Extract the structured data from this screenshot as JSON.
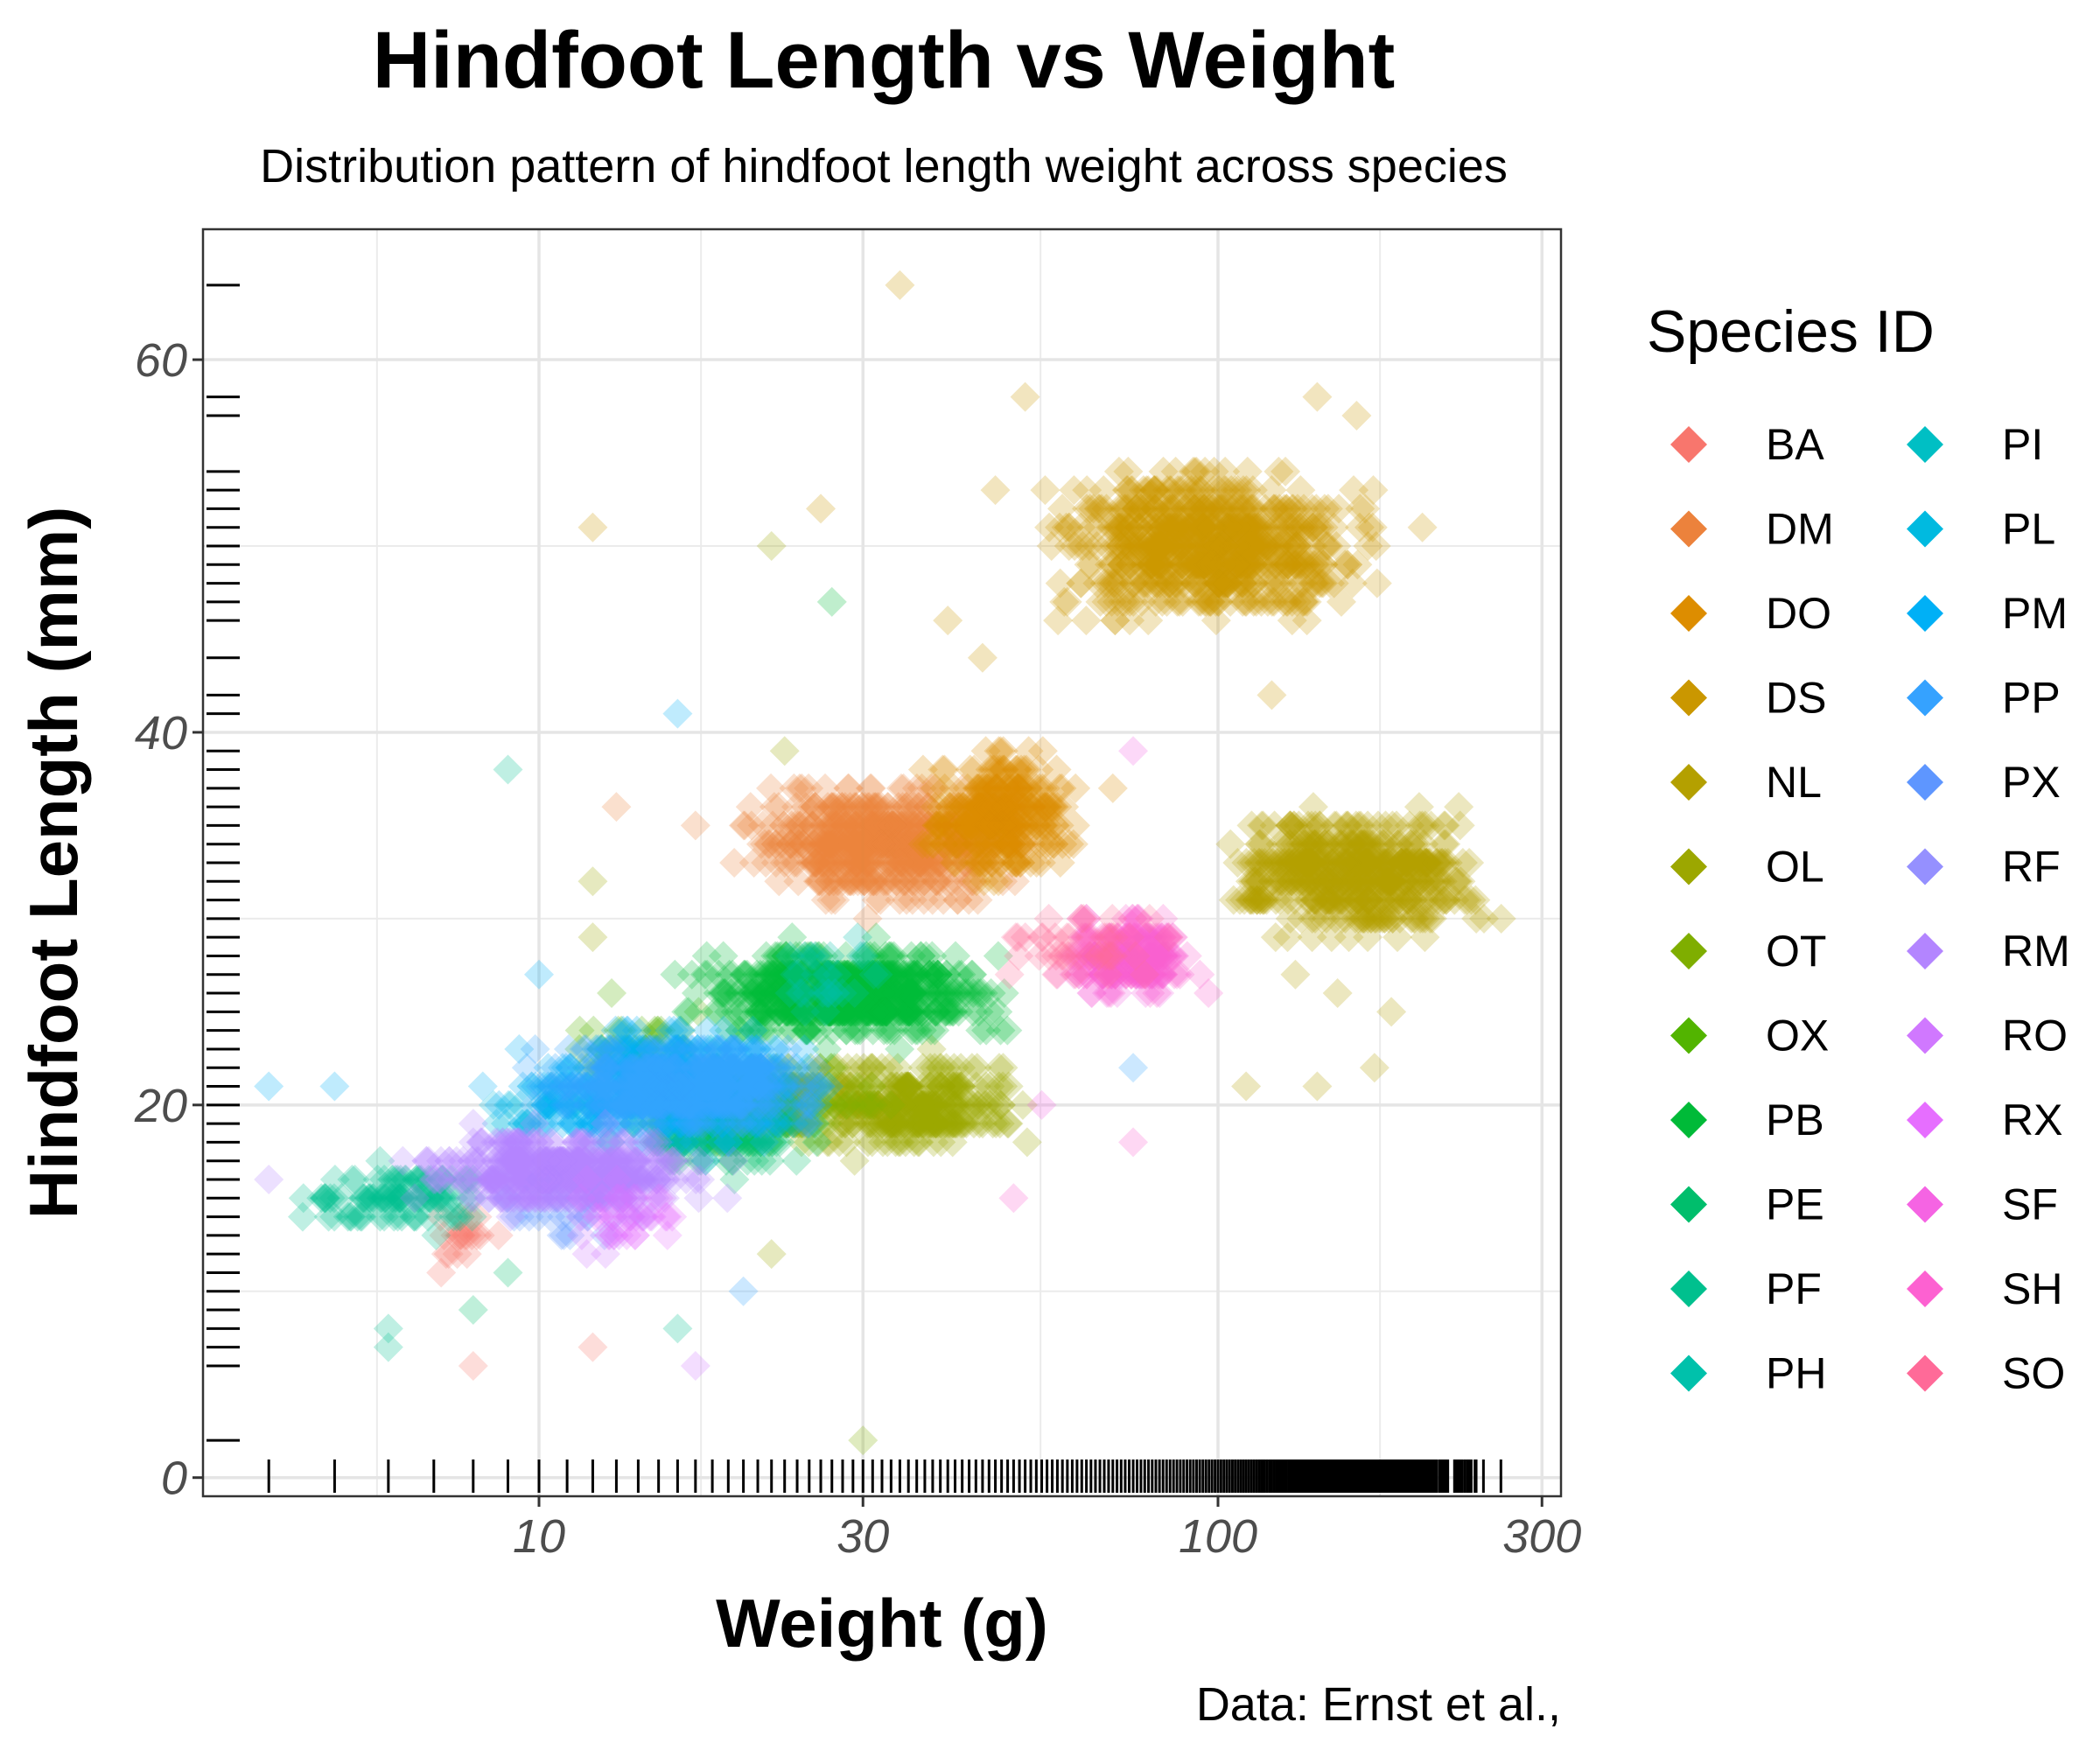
{
  "chart_data": {
    "type": "scatter",
    "title": "Hindfoot Length vs Weight",
    "subtitle": "Distribution pattern of hindfoot length weight across species",
    "xlabel": "Weight (g)",
    "ylabel": "Hindfoot Length (mm)",
    "caption": "Data: Ernst et al.,",
    "x_scale": "log10",
    "x_ticks": [
      10,
      30,
      100,
      300
    ],
    "x_tick_labels": [
      "10",
      "30",
      "100",
      "300"
    ],
    "xlim": [
      3.2,
      320
    ],
    "y_ticks": [
      0,
      20,
      40,
      60
    ],
    "y_tick_labels": [
      "0",
      "20",
      "40",
      "60"
    ],
    "ylim": [
      -1,
      67
    ],
    "grid": true,
    "rug": true,
    "marker": "diamond",
    "alpha": 0.25,
    "legend": {
      "title": "Species ID",
      "placement": "right",
      "columns": 2
    },
    "series": [
      {
        "name": "BA",
        "color": "#F8766D",
        "clusters": [
          {
            "x": [
              6,
              10
            ],
            "y": [
              10,
              15
            ],
            "n": 20
          }
        ],
        "points": [
          [
            8,
            6
          ],
          [
            12,
            7
          ]
        ]
      },
      {
        "name": "DM",
        "color": "#EC823C",
        "clusters": [
          {
            "x": [
              18,
              55
            ],
            "y": [
              30,
              38
            ],
            "n": 500
          }
        ],
        "points": [
          [
            13,
            36
          ],
          [
            17,
            35
          ]
        ]
      },
      {
        "name": "DO",
        "color": "#DD8D00",
        "clusters": [
          {
            "x": [
              35,
              65
            ],
            "y": [
              31,
              40
            ],
            "n": 300
          }
        ],
        "points": [
          [
            70,
            37
          ]
        ]
      },
      {
        "name": "DS",
        "color": "#CA9700",
        "clusters": [
          {
            "x": [
              50,
              190
            ],
            "y": [
              45,
              55
            ],
            "n": 700
          }
        ],
        "points": [
          [
            12,
            51
          ],
          [
            26,
            52
          ],
          [
            34,
            64
          ],
          [
            52,
            58
          ],
          [
            47,
            53
          ],
          [
            140,
            58
          ],
          [
            160,
            57
          ],
          [
            200,
            51
          ],
          [
            120,
            42
          ],
          [
            40,
            46
          ],
          [
            45,
            44
          ]
        ]
      },
      {
        "name": "NL",
        "color": "#B4A000",
        "clusters": [
          {
            "x": [
              90,
              280
            ],
            "y": [
              28,
              37
            ],
            "n": 500
          }
        ],
        "points": [
          [
            110,
            21
          ],
          [
            140,
            21
          ],
          [
            180,
            25
          ],
          [
            170,
            22
          ],
          [
            130,
            27
          ],
          [
            150,
            26
          ]
        ]
      },
      {
        "name": "OL",
        "color": "#9CA700",
        "clusters": [
          {
            "x": [
              22,
              55
            ],
            "y": [
              17,
              23
            ],
            "n": 300
          }
        ],
        "points": [
          [
            23,
            39
          ],
          [
            22,
            50
          ],
          [
            12,
            29
          ],
          [
            12,
            32
          ],
          [
            22,
            12
          ]
        ]
      },
      {
        "name": "OT",
        "color": "#7FAE00",
        "clusters": [
          {
            "x": [
              14,
              35
            ],
            "y": [
              17,
              23
            ],
            "n": 200
          }
        ],
        "points": [
          [
            30,
            2
          ]
        ]
      },
      {
        "name": "OX",
        "color": "#52B400",
        "clusters": [
          {
            "x": [
              10,
              20
            ],
            "y": [
              20,
              26
            ],
            "n": 40
          }
        ],
        "points": []
      },
      {
        "name": "PB",
        "color": "#00BA38",
        "clusters": [
          {
            "x": [
              15,
              55
            ],
            "y": [
              23,
              29
            ],
            "n": 600
          }
        ],
        "points": [
          [
            27,
            47
          ]
        ]
      },
      {
        "name": "PE",
        "color": "#00BE6C",
        "clusters": [
          {
            "x": [
              12,
              28
            ],
            "y": [
              16,
              22
            ],
            "n": 200
          }
        ],
        "points": [
          [
            8,
            9
          ],
          [
            9,
            11
          ]
        ]
      },
      {
        "name": "PF",
        "color": "#00C08E",
        "clusters": [
          {
            "x": [
              4,
              10
            ],
            "y": [
              13,
              17
            ],
            "n": 100
          }
        ],
        "points": [
          [
            9,
            38
          ],
          [
            6,
            8
          ],
          [
            6,
            7
          ],
          [
            16,
            8
          ]
        ]
      },
      {
        "name": "PH",
        "color": "#00C1AB",
        "clusters": [
          {
            "x": [
              20,
              33
            ],
            "y": [
              24,
              30
            ],
            "n": 30
          }
        ],
        "points": []
      },
      {
        "name": "PI",
        "color": "#00BFC4",
        "clusters": [
          {
            "x": [
              14,
              22
            ],
            "y": [
              19,
              24
            ],
            "n": 30
          }
        ],
        "points": []
      },
      {
        "name": "PL",
        "color": "#00BAE0",
        "clusters": [
          {
            "x": [
              7,
              16
            ],
            "y": [
              18,
              22
            ],
            "n": 40
          }
        ],
        "points": []
      },
      {
        "name": "PM",
        "color": "#00B0F6",
        "clusters": [
          {
            "x": [
              8,
              30
            ],
            "y": [
              17,
              25
            ],
            "n": 400
          }
        ],
        "points": [
          [
            4,
            21
          ],
          [
            5,
            21
          ],
          [
            10,
            27
          ],
          [
            16,
            41
          ]
        ]
      },
      {
        "name": "PP",
        "color": "#35A2FF",
        "clusters": [
          {
            "x": [
              9,
              30
            ],
            "y": [
              18,
              24
            ],
            "n": 400
          }
        ],
        "points": [
          [
            20,
            10
          ],
          [
            75,
            22
          ]
        ]
      },
      {
        "name": "PX",
        "color": "#5E96FF",
        "clusters": [
          {
            "x": [
              8,
              14
            ],
            "y": [
              12,
              17
            ],
            "n": 20
          }
        ],
        "points": []
      },
      {
        "name": "RF",
        "color": "#9590FF",
        "clusters": [
          {
            "x": [
              7,
              16
            ],
            "y": [
              13,
              18
            ],
            "n": 30
          }
        ],
        "points": []
      },
      {
        "name": "RM",
        "color": "#B385FF",
        "clusters": [
          {
            "x": [
              6,
              20
            ],
            "y": [
              14,
              19
            ],
            "n": 400
          }
        ],
        "points": [
          [
            4,
            16
          ]
        ]
      },
      {
        "name": "RO",
        "color": "#D078FF",
        "clusters": [
          {
            "x": [
              10,
              17
            ],
            "y": [
              11,
              17
            ],
            "n": 30
          }
        ],
        "points": [
          [
            17,
            6
          ]
        ]
      },
      {
        "name": "RX",
        "color": "#E66EFF",
        "clusters": [
          {
            "x": [
              10,
              18
            ],
            "y": [
              12,
              16
            ],
            "n": 15
          }
        ],
        "points": []
      },
      {
        "name": "SF",
        "color": "#F564E3",
        "clusters": [
          {
            "x": [
              60,
              95
            ],
            "y": [
              25,
              30
            ],
            "n": 50
          }
        ],
        "points": [
          [
            75,
            39
          ],
          [
            55,
            20
          ]
        ]
      },
      {
        "name": "SH",
        "color": "#FD61D1",
        "clusters": [
          {
            "x": [
              55,
              100
            ],
            "y": [
              25,
              31
            ],
            "n": 150
          }
        ],
        "points": [
          [
            75,
            18
          ],
          [
            50,
            15
          ]
        ]
      },
      {
        "name": "SO",
        "color": "#FF6A98",
        "clusters": [
          {
            "x": [
              45,
              90
            ],
            "y": [
              26,
              31
            ],
            "n": 40
          }
        ],
        "points": []
      }
    ]
  }
}
